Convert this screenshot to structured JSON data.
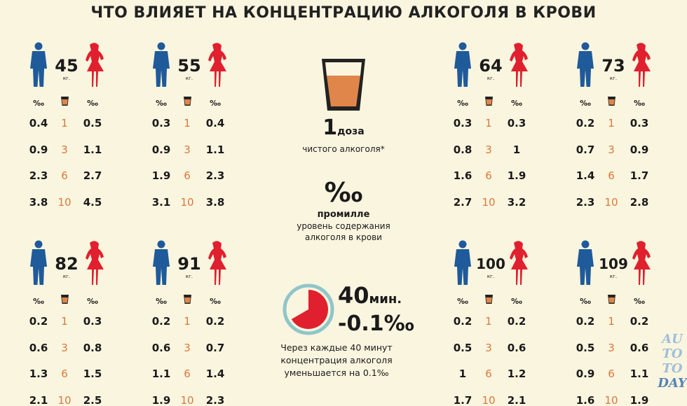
{
  "title": "ЧТО ВЛИЯЕТ НА КОНЦЕНТРАЦИЮ АЛКОГОЛЯ В КРОВИ",
  "unit": "‰",
  "kg_label": "кг.",
  "groups": [
    {
      "weight": "45",
      "rows": [
        {
          "man": "0.4",
          "dose": "1",
          "woman": "0.5"
        },
        {
          "man": "0.9",
          "dose": "3",
          "woman": "1.1"
        },
        {
          "man": "2.3",
          "dose": "6",
          "woman": "2.7"
        },
        {
          "man": "3.8",
          "dose": "10",
          "woman": "4.5"
        }
      ]
    },
    {
      "weight": "55",
      "rows": [
        {
          "man": "0.3",
          "dose": "1",
          "woman": "0.4"
        },
        {
          "man": "0.9",
          "dose": "3",
          "woman": "1.1"
        },
        {
          "man": "1.9",
          "dose": "6",
          "woman": "2.3"
        },
        {
          "man": "3.1",
          "dose": "10",
          "woman": "3.8"
        }
      ]
    },
    {
      "weight": "64",
      "rows": [
        {
          "man": "0.3",
          "dose": "1",
          "woman": "0.3"
        },
        {
          "man": "0.8",
          "dose": "3",
          "woman": "1"
        },
        {
          "man": "1.6",
          "dose": "6",
          "woman": "1.9"
        },
        {
          "man": "2.7",
          "dose": "10",
          "woman": "3.2"
        }
      ]
    },
    {
      "weight": "73",
      "rows": [
        {
          "man": "0.2",
          "dose": "1",
          "woman": "0.3"
        },
        {
          "man": "0.7",
          "dose": "3",
          "woman": "0.9"
        },
        {
          "man": "1.4",
          "dose": "6",
          "woman": "1.7"
        },
        {
          "man": "2.3",
          "dose": "10",
          "woman": "2.8"
        }
      ]
    },
    {
      "weight": "82",
      "rows": [
        {
          "man": "0.2",
          "dose": "1",
          "woman": "0.3"
        },
        {
          "man": "0.6",
          "dose": "3",
          "woman": "0.8"
        },
        {
          "man": "1.3",
          "dose": "6",
          "woman": "1.5"
        },
        {
          "man": "2.1",
          "dose": "10",
          "woman": "2.5"
        }
      ]
    },
    {
      "weight": "91",
      "rows": [
        {
          "man": "0.2",
          "dose": "1",
          "woman": "0.2"
        },
        {
          "man": "0.6",
          "dose": "3",
          "woman": "0.7"
        },
        {
          "man": "1.1",
          "dose": "6",
          "woman": "1.4"
        },
        {
          "man": "1.9",
          "dose": "10",
          "woman": "2.3"
        }
      ]
    },
    {
      "weight": "100",
      "rows": [
        {
          "man": "0.2",
          "dose": "1",
          "woman": "0.2"
        },
        {
          "man": "0.5",
          "dose": "3",
          "woman": "0.6"
        },
        {
          "man": "1",
          "dose": "6",
          "woman": "1.2"
        },
        {
          "man": "1.7",
          "dose": "10",
          "woman": "2.1"
        }
      ]
    },
    {
      "weight": "109",
      "rows": [
        {
          "man": "0.2",
          "dose": "1",
          "woman": "0.2"
        },
        {
          "man": "0.5",
          "dose": "3",
          "woman": "0.6"
        },
        {
          "man": "0.9",
          "dose": "6",
          "woman": "1.1"
        },
        {
          "man": "1.6",
          "dose": "10",
          "woman": "1.9"
        }
      ]
    }
  ],
  "legend": {
    "dose_number": "1",
    "dose_word": "доза",
    "dose_desc": "чистого алкоголя*",
    "permille_symbol": "‰",
    "permille_word": "промилле",
    "permille_desc1": "уровень содержания",
    "permille_desc2": "алкоголя в крови",
    "time_value": "40",
    "time_unit": "мин.",
    "decrease": "-0.1‰",
    "time_desc1": "Через каждые 40 минут",
    "time_desc2": "концентрация алкоголя",
    "time_desc3": "уменьшается на 0.1‰"
  },
  "watermark": "AUTOTODAY",
  "colors": {
    "man": "#1f5a9a",
    "woman": "#e0202e",
    "dose": "#d9783a",
    "drink": "#e0864a",
    "clock": "#e0202e",
    "clock_ring": "#8fc6c9"
  }
}
